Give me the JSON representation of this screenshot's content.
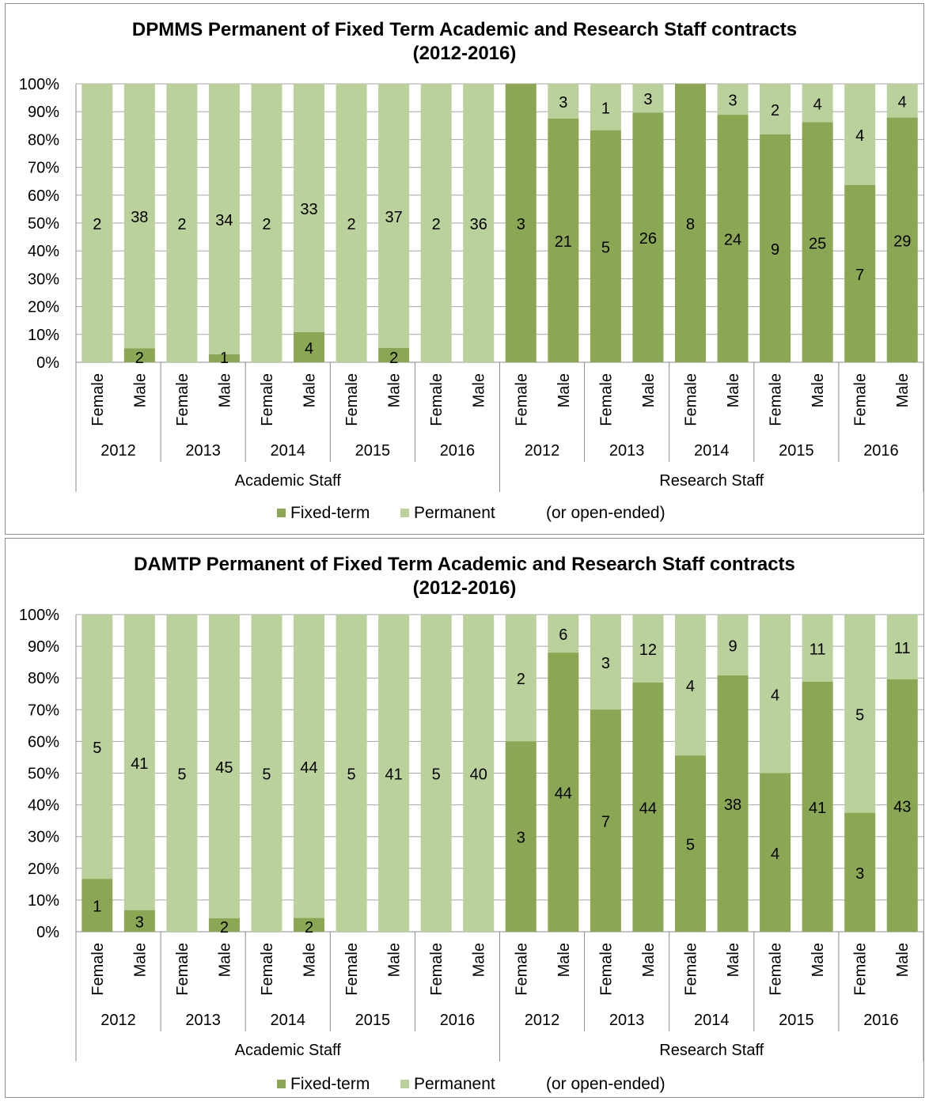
{
  "colors": {
    "fixed_term": "#8BA753",
    "permanent": "#BBD19C",
    "grid": "#A6A6A6",
    "axis": "#8C8C8C"
  },
  "chart_data": [
    {
      "type": "bar",
      "stacked": "percent",
      "title_line1": "DPMMS Permanent of Fixed Term Academic and Research Staff contracts",
      "title_line2": "(2012-2016)",
      "ylim": [
        0,
        100
      ],
      "y_ticks": [
        "0%",
        "10%",
        "20%",
        "30%",
        "40%",
        "50%",
        "60%",
        "70%",
        "80%",
        "90%",
        "100%"
      ],
      "grid": true,
      "legend_position": "bottom",
      "category_levels": {
        "gender": [
          "Female",
          "Male",
          "Female",
          "Male",
          "Female",
          "Male",
          "Female",
          "Male",
          "Female",
          "Male",
          "Female",
          "Male",
          "Female",
          "Male",
          "Female",
          "Male",
          "Female",
          "Male",
          "Female",
          "Male"
        ],
        "year": [
          "2012",
          "2013",
          "2014",
          "2015",
          "2016",
          "2012",
          "2013",
          "2014",
          "2015",
          "2016"
        ],
        "staff_group": [
          "Academic Staff",
          "Research Staff"
        ]
      },
      "series": [
        {
          "name": "Fixed-term",
          "values": [
            0,
            2,
            0,
            1,
            0,
            4,
            0,
            2,
            0,
            0,
            3,
            21,
            5,
            26,
            8,
            24,
            9,
            25,
            7,
            29
          ]
        },
        {
          "name": "Permanent",
          "values": [
            2,
            38,
            2,
            34,
            2,
            33,
            2,
            37,
            2,
            36,
            0,
            3,
            1,
            3,
            0,
            3,
            2,
            4,
            4,
            4
          ]
        }
      ],
      "legend": [
        "Fixed-term",
        "Permanent",
        "(or open-ended)"
      ]
    },
    {
      "type": "bar",
      "stacked": "percent",
      "title_line1": "DAMTP Permanent of Fixed Term Academic and Research Staff contracts",
      "title_line2": "(2012-2016)",
      "ylim": [
        0,
        100
      ],
      "y_ticks": [
        "0%",
        "10%",
        "20%",
        "30%",
        "40%",
        "50%",
        "60%",
        "70%",
        "80%",
        "90%",
        "100%"
      ],
      "grid": true,
      "legend_position": "bottom",
      "category_levels": {
        "gender": [
          "Female",
          "Male",
          "Female",
          "Male",
          "Female",
          "Male",
          "Female",
          "Male",
          "Female",
          "Male",
          "Female",
          "Male",
          "Female",
          "Male",
          "Female",
          "Male",
          "Female",
          "Male",
          "Female",
          "Male"
        ],
        "year": [
          "2012",
          "2013",
          "2014",
          "2015",
          "2016",
          "2012",
          "2013",
          "2014",
          "2015",
          "2016"
        ],
        "staff_group": [
          "Academic Staff",
          "Research Staff"
        ]
      },
      "series": [
        {
          "name": "Fixed-term",
          "values": [
            1,
            3,
            0,
            2,
            0,
            2,
            0,
            0,
            0,
            0,
            3,
            44,
            7,
            44,
            5,
            38,
            4,
            41,
            3,
            43
          ]
        },
        {
          "name": "Permanent",
          "values": [
            5,
            41,
            5,
            45,
            5,
            44,
            5,
            41,
            5,
            40,
            2,
            6,
            3,
            12,
            4,
            9,
            4,
            11,
            5,
            11
          ]
        }
      ],
      "legend": [
        "Fixed-term",
        "Permanent",
        "(or open-ended)"
      ]
    }
  ]
}
